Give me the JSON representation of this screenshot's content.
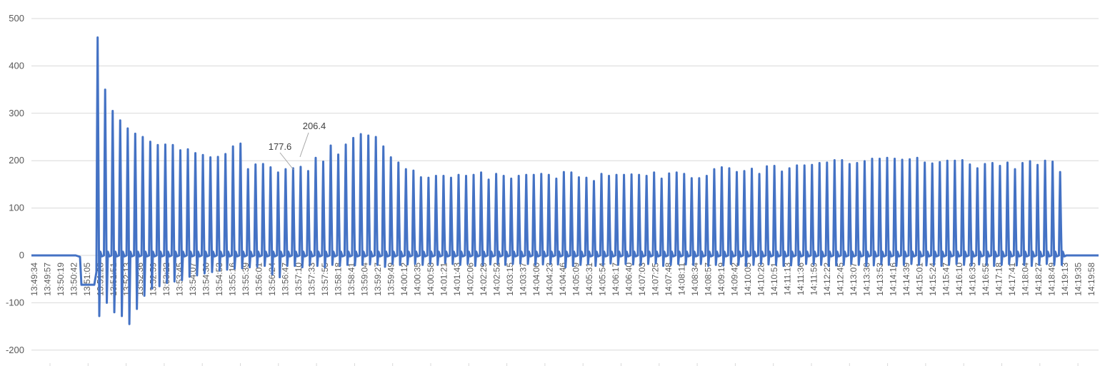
{
  "chart_data": {
    "type": "line",
    "title": "",
    "xlabel": "",
    "ylabel": "",
    "ylim": [
      -200,
      500
    ],
    "y_ticks": [
      500,
      400,
      300,
      200,
      100,
      0,
      -100,
      -200
    ],
    "grid": "horizontal",
    "legend": "none",
    "colors": {
      "series": "#4472C4",
      "grid": "#D9D9D9",
      "axis_text": "#595959"
    },
    "x_tick_labels": [
      "13:49:34",
      "13:49:57",
      "13:50:19",
      "13:50:42",
      "13:51:05",
      "13:51:28",
      "13:51:51",
      "13:52:13",
      "13:52:36",
      "13:52:59",
      "13:53:22",
      "13:53:45",
      "13:54:07",
      "13:54:30",
      "13:54:53",
      "13:55:16",
      "13:55:39",
      "13:56:01",
      "13:56:24",
      "13:56:47",
      "13:57:10",
      "13:57:33",
      "13:57:55",
      "13:58:18",
      "13:58:41",
      "13:59:04",
      "13:59:27",
      "13:59:49",
      "14:00:12",
      "14:00:35",
      "14:00:58",
      "14:01:21",
      "14:01:43",
      "14:02:06",
      "14:02:29",
      "14:02:52",
      "14:03:15",
      "14:03:37",
      "14:04:00",
      "14:04:23",
      "14:04:46",
      "14:05:09",
      "14:05:31",
      "14:05:54",
      "14:06:17",
      "14:06:40",
      "14:07:03",
      "14:07:25",
      "14:07:48",
      "14:08:11",
      "14:08:34",
      "14:08:57",
      "14:09:19",
      "14:09:42",
      "14:10:05",
      "14:10:28",
      "14:10:51",
      "14:11:13",
      "14:11:36",
      "14:11:59",
      "14:12:22",
      "14:12:45",
      "14:13:07",
      "14:13:30",
      "14:13:53",
      "14:14:16",
      "14:14:39",
      "14:15:01",
      "14:15:24",
      "14:15:47",
      "14:16:10",
      "14:16:33",
      "14:16:55",
      "14:17:18",
      "14:17:41",
      "14:18:04",
      "14:18:27",
      "14:18:49",
      "14:19:13",
      "14:19:35",
      "14:19:58"
    ],
    "annotations": [
      {
        "label": "177.6",
        "at_tick": "13:56:47",
        "value": 177.6
      },
      {
        "label": "206.4",
        "at_tick": "13:57:10",
        "value": 206.4
      }
    ],
    "series": [
      {
        "peaks": [
          460,
          350,
          305,
          285,
          268,
          257,
          250,
          240,
          233,
          234,
          233,
          222,
          224,
          216,
          212,
          207,
          208,
          214,
          230,
          236,
          182,
          192,
          193,
          186,
          175,
          182,
          184,
          187,
          178,
          206,
          198,
          232,
          213,
          234,
          248,
          256,
          253,
          250,
          230,
          207,
          196,
          182,
          179,
          165,
          164,
          168,
          168,
          164,
          170,
          168,
          170,
          175,
          160,
          172,
          168,
          162,
          168,
          170,
          170,
          172,
          170,
          162,
          176,
          175,
          165,
          164,
          157,
          172,
          168,
          170,
          170,
          171,
          170,
          168,
          175,
          162,
          173,
          175,
          172,
          163,
          163,
          168,
          182,
          186,
          184,
          176,
          178,
          183,
          172,
          188,
          189,
          177,
          184,
          190,
          190,
          191,
          195,
          196,
          201,
          201,
          193,
          195,
          199,
          204,
          204,
          206,
          204,
          202,
          203,
          206,
          196,
          194,
          197,
          200,
          200,
          201,
          192,
          184,
          193,
          195,
          189,
          196,
          182,
          195,
          199,
          191,
          200,
          198,
          176
        ],
        "troughs": [
          -128,
          -100,
          -120,
          -128,
          -145,
          -113,
          -85,
          -70,
          -65,
          -58,
          -55,
          -52,
          -45,
          -42,
          -38,
          -35,
          -32,
          -30,
          -28,
          -27,
          -25,
          -24,
          -22,
          -40,
          -46,
          -22,
          -22,
          -25,
          -20,
          -22,
          -25,
          -20,
          -22,
          -20,
          -21,
          -20,
          -19,
          -20,
          -24,
          -18,
          -20,
          -19,
          -18,
          -20,
          -18,
          -20,
          -16,
          -18,
          -20,
          -18,
          -22,
          -20,
          -19,
          -18,
          -20,
          -18,
          -17,
          -18,
          -20,
          -19,
          -18,
          -19,
          -25,
          -22,
          -20,
          -18,
          -22,
          -20,
          -17,
          -20,
          -18,
          -19,
          -20,
          -18,
          -17,
          -22,
          -20,
          -18,
          -19,
          -20,
          -18,
          -22,
          -20,
          -21,
          -18,
          -20,
          -22,
          -20,
          -18,
          -19,
          -20,
          -22,
          -21,
          -20,
          -18,
          -19,
          -20,
          -22,
          -21,
          -20,
          -18,
          -20,
          -22,
          -21,
          -19,
          -20,
          -22,
          -20,
          -18,
          -20,
          -21,
          -20,
          -22,
          -20,
          -18,
          -20,
          -21,
          -19,
          -20,
          -22,
          -20,
          -18,
          -21,
          -20,
          -22,
          -20,
          -18,
          -20,
          -20
        ]
      }
    ]
  }
}
